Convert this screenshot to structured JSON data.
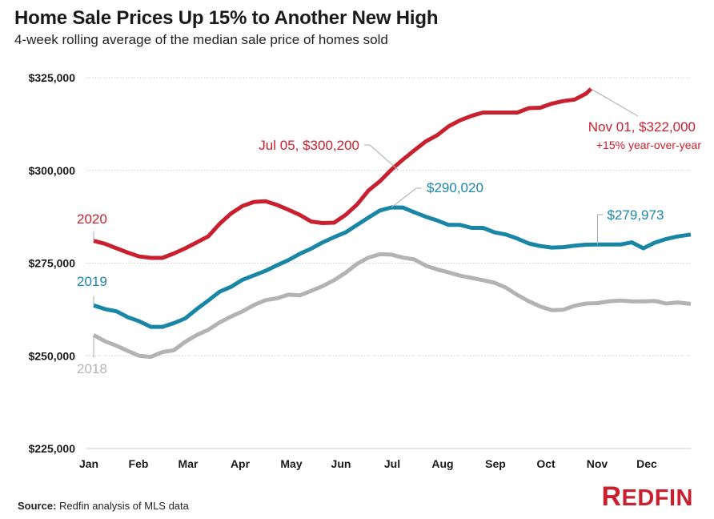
{
  "chart_data": {
    "type": "line",
    "title": "Home Sale Prices Up 15% to Another New High",
    "subtitle": "4-week rolling average of the median sale price of homes sold",
    "xlabel": "",
    "ylabel": "",
    "ylim": [
      225000,
      325000
    ],
    "yticks": [
      225000,
      250000,
      275000,
      300000,
      325000
    ],
    "ytick_labels": [
      "$225,000",
      "$250,000",
      "$275,000",
      "$300,000",
      "$325,000"
    ],
    "x_unit": "day of year",
    "xlim": [
      0,
      365
    ],
    "xticks": [
      0,
      31,
      59,
      90,
      120,
      151,
      181,
      212,
      243,
      273,
      304,
      334
    ],
    "xtick_labels": [
      "Jan",
      "Feb",
      "Mar",
      "Apr",
      "May",
      "Jun",
      "Jul",
      "Aug",
      "Sep",
      "Oct",
      "Nov",
      "Dec"
    ],
    "grid": "horizontal-dotted",
    "legend": "inline-labels",
    "series": [
      {
        "name": "2018",
        "color": "#b3b3b3",
        "x": [
          0,
          7,
          14,
          21,
          28,
          35,
          42,
          49,
          56,
          63,
          70,
          77,
          84,
          91,
          98,
          105,
          112,
          119,
          126,
          133,
          140,
          147,
          154,
          161,
          168,
          175,
          182,
          189,
          196,
          203,
          210,
          217,
          224,
          231,
          238,
          245,
          252,
          259,
          266,
          273,
          280,
          287,
          294,
          301,
          308,
          315,
          322,
          329,
          336,
          343,
          350,
          357,
          365
        ],
        "values": [
          255600,
          253900,
          252700,
          251300,
          250000,
          249700,
          251000,
          251500,
          253800,
          255600,
          257000,
          259000,
          260600,
          262000,
          263700,
          265000,
          265500,
          266500,
          266300,
          267500,
          268800,
          270400,
          272400,
          274800,
          276500,
          277400,
          277300,
          276500,
          276000,
          274300,
          273300,
          272500,
          271600,
          271000,
          270400,
          269700,
          268400,
          266400,
          264700,
          263300,
          262300,
          262400,
          263500,
          264100,
          264200,
          264700,
          264900,
          264700,
          264700,
          264800,
          264100,
          264400,
          264000
        ]
      },
      {
        "name": "2019",
        "color": "#1a86a6",
        "x": [
          0,
          7,
          14,
          21,
          28,
          35,
          42,
          49,
          56,
          63,
          70,
          77,
          84,
          91,
          98,
          105,
          112,
          119,
          126,
          133,
          140,
          147,
          154,
          161,
          168,
          175,
          182,
          189,
          196,
          203,
          210,
          217,
          224,
          231,
          238,
          245,
          252,
          259,
          266,
          273,
          280,
          287,
          294,
          301,
          308,
          315,
          322,
          329,
          336,
          343,
          350,
          357,
          365
        ],
        "values": [
          263600,
          262600,
          262000,
          260400,
          259300,
          257800,
          257800,
          258800,
          260100,
          262600,
          264900,
          267300,
          268600,
          270500,
          271700,
          272900,
          274400,
          275800,
          277500,
          278900,
          280600,
          282000,
          283300,
          285300,
          287300,
          289200,
          290020,
          290000,
          288700,
          287500,
          286500,
          285300,
          285300,
          284500,
          284500,
          283300,
          282700,
          281600,
          280300,
          279600,
          279200,
          279300,
          279700,
          279973,
          280000,
          280000,
          280000,
          280600,
          279000,
          280500,
          281500,
          282200,
          282700
        ]
      },
      {
        "name": "2020",
        "color": "#c8202f",
        "x": [
          0,
          7,
          14,
          21,
          28,
          35,
          42,
          49,
          56,
          63,
          70,
          77,
          84,
          91,
          98,
          105,
          112,
          119,
          126,
          133,
          140,
          147,
          154,
          161,
          168,
          175,
          182,
          189,
          196,
          203,
          210,
          217,
          224,
          231,
          238,
          245,
          252,
          259,
          266,
          273,
          280,
          287,
          294,
          301,
          304
        ],
        "values": [
          281000,
          280200,
          279000,
          277800,
          276800,
          276400,
          276400,
          277600,
          279000,
          280600,
          282200,
          285600,
          288400,
          290400,
          291500,
          291700,
          290700,
          289400,
          288000,
          286200,
          285800,
          285900,
          288000,
          290800,
          294600,
          297100,
          300200,
          302900,
          305400,
          307800,
          309500,
          311900,
          313500,
          314700,
          315600,
          315600,
          315600,
          315600,
          316800,
          316900,
          318000,
          318700,
          319100,
          320700,
          322000
        ]
      }
    ],
    "annotations": [
      {
        "series": "2020",
        "text": "Jul 05, $300,200",
        "x": 186,
        "value": 300200
      },
      {
        "series": "2020",
        "text": "Nov 01, $322,000",
        "subtext": "+15% year-over-year",
        "x": 304,
        "value": 322000
      },
      {
        "series": "2019",
        "text": "$290,020",
        "x": 182,
        "value": 290020
      },
      {
        "series": "2019",
        "text": "$279,973",
        "x": 308,
        "value": 279973
      }
    ],
    "series_labels": [
      {
        "series": "2020",
        "text": "2020"
      },
      {
        "series": "2019",
        "text": "2019"
      },
      {
        "series": "2018",
        "text": "2018"
      }
    ]
  },
  "footer": {
    "source_label": "Source:",
    "source_text": " Redfin analysis of MLS data",
    "logo_first": "R",
    "logo_rest": "EDFIN"
  }
}
